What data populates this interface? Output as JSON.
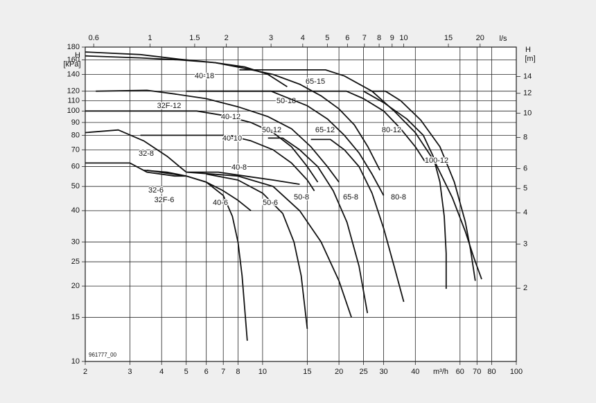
{
  "chart_data": {
    "type": "line",
    "log_scale": true,
    "grid": true,
    "color": "#111111",
    "x_label": "m³/h",
    "xlim": [
      2,
      100
    ],
    "xticks": [
      2,
      3,
      4,
      5,
      6,
      7,
      8,
      10,
      15,
      20,
      25,
      30,
      40,
      60,
      70,
      80,
      100
    ],
    "x2_label": "l/s",
    "x2lim": [
      0.5556,
      27.78
    ],
    "x2ticks": [
      0.6,
      1,
      1.5,
      2,
      3,
      4,
      5,
      6,
      7,
      8,
      9,
      10,
      15,
      20
    ],
    "y_label": "H",
    "y_unit": "[kPa]",
    "ylim": [
      10,
      180
    ],
    "yticks": [
      10,
      15,
      20,
      25,
      30,
      40,
      50,
      60,
      70,
      80,
      90,
      100,
      110,
      120,
      140,
      160,
      180
    ],
    "y2_label": "H",
    "y2_unit": "[m]",
    "y2lim": [
      1.02,
      18.35
    ],
    "y2ticks": [
      2,
      3,
      4,
      5,
      6,
      8,
      10,
      12,
      14
    ],
    "note": "961777_00",
    "series": [
      {
        "name": "40-18",
        "x": [
          2,
          3.3,
          4.7,
          6.5,
          8.5,
          10.5,
          12.5
        ],
        "values": [
          166,
          163,
          160,
          156,
          150,
          140,
          125
        ]
      },
      {
        "name": "65-15",
        "x": [
          8.1,
          17.7,
          21,
          27,
          33,
          40,
          48,
          56,
          63,
          68,
          73
        ],
        "values": [
          146,
          146,
          138,
          120,
          100,
          82,
          62,
          45,
          33,
          26,
          21.3
        ]
      },
      {
        "name": "50-18",
        "x": [
          2,
          3.3,
          4.7,
          6.5,
          8.5,
          11,
          14,
          17,
          20,
          23,
          26,
          29
        ],
        "values": [
          172,
          168,
          161,
          156,
          148,
          140,
          128,
          115,
          102,
          88,
          72,
          58
        ]
      },
      {
        "name": "32F-12",
        "x": [
          2.2,
          3.5,
          4.5,
          6,
          8,
          10.5,
          13,
          15.5,
          18,
          20
        ],
        "values": [
          120,
          121,
          117,
          112,
          104,
          95,
          85,
          72,
          60,
          52
        ]
      },
      {
        "name": "40-12",
        "x": [
          2,
          5.5,
          7,
          9,
          11,
          13,
          15,
          16.5
        ],
        "values": [
          100,
          100,
          96,
          90,
          82,
          72,
          60,
          52
        ]
      },
      {
        "name": "50-12",
        "x": [
          5.6,
          10.8,
          12,
          15,
          18,
          21,
          24,
          27,
          30
        ],
        "values": [
          120,
          120,
          115,
          105,
          93,
          80,
          68,
          56,
          46
        ]
      },
      {
        "name": "65-12",
        "x": [
          5,
          21.4,
          25,
          30,
          35,
          40,
          44
        ],
        "values": [
          120,
          120,
          112,
          100,
          85,
          72,
          62
        ]
      },
      {
        "name": "80-12",
        "x": [
          26.8,
          30.5,
          35,
          42,
          50,
          57,
          63,
          66,
          68.9
        ],
        "values": [
          120,
          120,
          110,
          92,
          72,
          52,
          36,
          28,
          21
        ]
      },
      {
        "name": "100-12",
        "x": [
          25,
          30,
          37,
          43,
          47,
          50,
          52,
          52.9,
          52.9
        ],
        "values": [
          120,
          108,
          93,
          80,
          66,
          52,
          38,
          27,
          19.5
        ]
      },
      {
        "name": "40-10",
        "x": [
          3.3,
          7.3,
          9,
          11,
          13,
          15,
          16
        ],
        "values": [
          80,
          80,
          76,
          70,
          62,
          53,
          48
        ]
      },
      {
        "name": "32-8",
        "x": [
          2,
          2.7,
          3.4,
          4.2,
          5
        ],
        "values": [
          82,
          84,
          76,
          66,
          57
        ]
      },
      {
        "name": "40-8",
        "x": [
          5,
          6.7,
          8.5,
          11,
          14
        ],
        "values": [
          57,
          57,
          55,
          53,
          51
        ]
      },
      {
        "name": "50-8",
        "x": [
          5,
          8,
          11,
          14,
          17,
          20,
          22.4
        ],
        "values": [
          57,
          55,
          50,
          40,
          30,
          21,
          15
        ]
      },
      {
        "name": "65-8",
        "x": [
          10.5,
          12,
          14,
          16.5,
          19,
          21.5,
          24,
          25.9
        ],
        "values": [
          78,
          78,
          70,
          60,
          48,
          36,
          24,
          15.6
        ]
      },
      {
        "name": "80-8",
        "x": [
          15.5,
          18.5,
          21,
          24,
          27,
          30,
          33,
          36
        ],
        "values": [
          77,
          77,
          70,
          60,
          47,
          34,
          24,
          17.3
        ]
      },
      {
        "name": "32-6",
        "x": [
          2,
          3,
          3.5,
          4.5,
          5
        ],
        "values": [
          62,
          62,
          57,
          55,
          55
        ]
      },
      {
        "name": "32F-6",
        "x": [
          3.4,
          4.2,
          5,
          6,
          7,
          8,
          9
        ],
        "values": [
          58,
          57,
          55,
          52,
          48,
          44,
          40
        ]
      },
      {
        "name": "40-6",
        "x": [
          3.5,
          5,
          6,
          7,
          7.6,
          8,
          8.3,
          8.7
        ],
        "values": [
          58,
          55,
          52,
          46,
          38,
          30,
          22,
          12.1
        ]
      },
      {
        "name": "50-6",
        "x": [
          6,
          8,
          10,
          12,
          13.3,
          14.2,
          15
        ],
        "values": [
          56,
          53,
          47,
          39,
          30,
          22,
          13.5
        ]
      }
    ]
  }
}
